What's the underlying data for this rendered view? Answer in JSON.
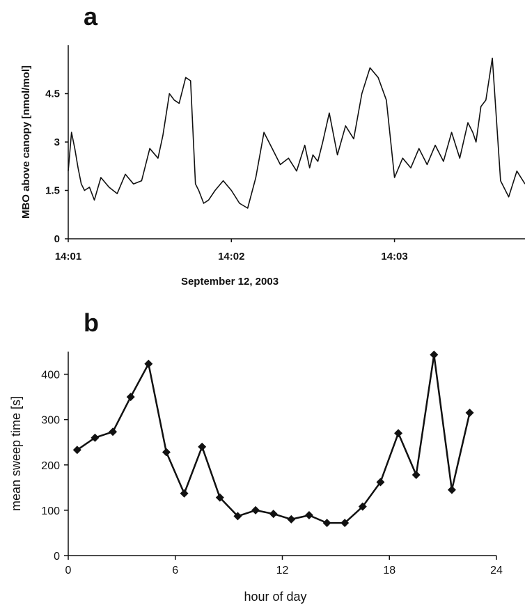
{
  "chart_data": [
    {
      "panel": "a",
      "type": "line",
      "title": "",
      "xlabel": "September 12, 2003",
      "ylabel": "MBO above canopy [nmol/mol]",
      "x_unit": "minutes after 14:01",
      "xlim": [
        0,
        2.8
      ],
      "ylim": [
        0,
        6
      ],
      "yticks": [
        "0",
        "1.5",
        "3",
        "4.5"
      ],
      "xticks": [
        "14:01",
        "14:02",
        "14:03"
      ],
      "grid": false,
      "series": [
        {
          "x": [
            0,
            0.02,
            0.04,
            0.06,
            0.08,
            0.1,
            0.13,
            0.16,
            0.2,
            0.25,
            0.3,
            0.35,
            0.4,
            0.45,
            0.5,
            0.55,
            0.58,
            0.62,
            0.65,
            0.68,
            0.72,
            0.75,
            0.78,
            0.8,
            0.83,
            0.86,
            0.9,
            0.95,
            1.0,
            1.05,
            1.1,
            1.15,
            1.2,
            1.25,
            1.3,
            1.35,
            1.4,
            1.45,
            1.48,
            1.5,
            1.53,
            1.56,
            1.6,
            1.65,
            1.7,
            1.75,
            1.8,
            1.85,
            1.9,
            1.95,
            2.0,
            2.05,
            2.1,
            2.15,
            2.2,
            2.25,
            2.3,
            2.35,
            2.4,
            2.45,
            2.48,
            2.5,
            2.53,
            2.56,
            2.6,
            2.65,
            2.7,
            2.75,
            2.8
          ],
          "y": [
            2.1,
            3.3,
            2.8,
            2.2,
            1.7,
            1.5,
            1.6,
            1.2,
            1.9,
            1.6,
            1.4,
            2.0,
            1.7,
            1.8,
            2.8,
            2.5,
            3.2,
            4.5,
            4.3,
            4.2,
            5.0,
            4.9,
            1.7,
            1.5,
            1.1,
            1.2,
            1.5,
            1.8,
            1.5,
            1.1,
            0.95,
            1.9,
            3.3,
            2.8,
            2.3,
            2.5,
            2.1,
            2.9,
            2.2,
            2.6,
            2.4,
            3.0,
            3.9,
            2.6,
            3.5,
            3.1,
            4.5,
            5.3,
            5.0,
            4.3,
            1.9,
            2.5,
            2.2,
            2.8,
            2.3,
            2.9,
            2.4,
            3.3,
            2.5,
            3.6,
            3.3,
            3.0,
            4.1,
            4.3,
            5.6,
            1.8,
            1.3,
            2.1,
            1.7
          ]
        }
      ]
    },
    {
      "panel": "b",
      "type": "line",
      "title": "",
      "xlabel": "hour of day",
      "ylabel": "mean sweep time [s]",
      "xlim": [
        0,
        24
      ],
      "ylim": [
        0,
        450
      ],
      "xticks": [
        "0",
        "6",
        "12",
        "18",
        "24"
      ],
      "yticks": [
        "0",
        "100",
        "200",
        "300",
        "400"
      ],
      "grid": false,
      "marker": "diamond",
      "series": [
        {
          "x": [
            0.5,
            1.5,
            2.5,
            3.5,
            4.5,
            5.5,
            6.5,
            7.5,
            8.5,
            9.5,
            10.5,
            11.5,
            12.5,
            13.5,
            14.5,
            15.5,
            16.5,
            17.5,
            18.5,
            19.5,
            20.5,
            21.5,
            22.5
          ],
          "y": [
            233,
            260,
            273,
            350,
            423,
            228,
            137,
            240,
            128,
            87,
            100,
            92,
            80,
            89,
            72,
            72,
            108,
            162,
            270,
            178,
            443,
            145,
            315
          ]
        }
      ]
    }
  ],
  "colors": {
    "line": "#111111",
    "background": "#ffffff"
  }
}
